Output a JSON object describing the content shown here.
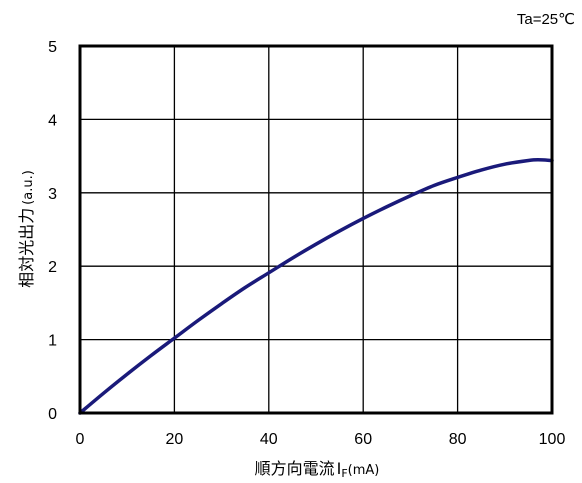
{
  "chart_data": {
    "type": "line",
    "condition": "Ta=25℃",
    "xlabel_main": "順方向電流",
    "xlabel_symbol": "I",
    "xlabel_subscript": "F",
    "xlabel_unit": "(mA)",
    "ylabel_main": "相対光出力",
    "ylabel_unit": "(a.u.)",
    "xlim": [
      0,
      100
    ],
    "ylim": [
      0,
      5
    ],
    "xticks": [
      0,
      20,
      40,
      60,
      80,
      100
    ],
    "yticks": [
      0,
      1,
      2,
      3,
      4,
      5
    ],
    "grid": true,
    "line_color": "#1a1a7a",
    "series": [
      {
        "x": [
          0,
          5,
          10,
          15,
          20,
          25,
          30,
          35,
          40,
          45,
          50,
          55,
          60,
          65,
          70,
          75,
          80,
          85,
          90,
          95,
          97,
          100
        ],
        "y": [
          0,
          0.27,
          0.53,
          0.78,
          1.02,
          1.26,
          1.49,
          1.71,
          1.91,
          2.11,
          2.3,
          2.48,
          2.65,
          2.81,
          2.96,
          3.1,
          3.21,
          3.31,
          3.39,
          3.44,
          3.45,
          3.44
        ]
      }
    ]
  }
}
